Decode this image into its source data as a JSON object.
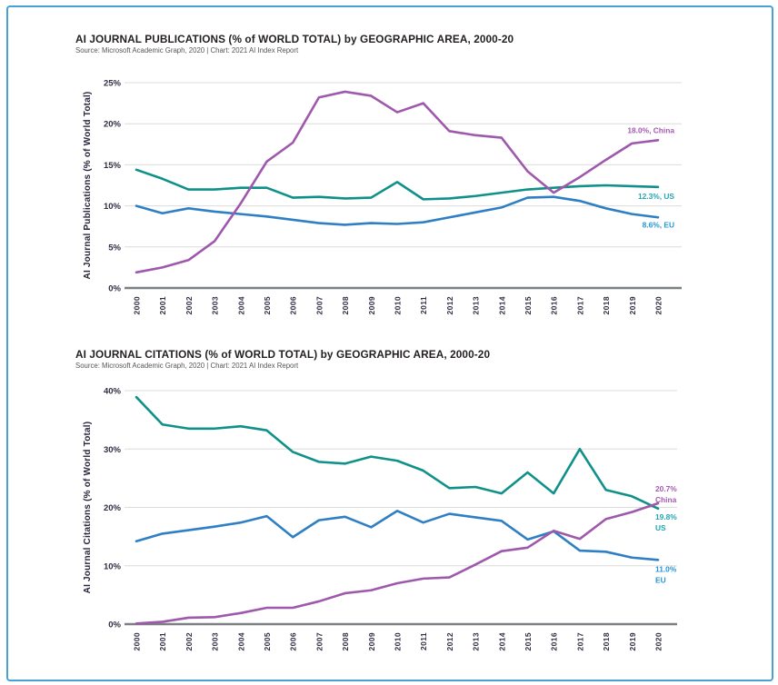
{
  "page": {
    "border_color": "#4ba0d2",
    "background": "#ffffff"
  },
  "chart_data": [
    {
      "type": "line",
      "title": "AI JOURNAL PUBLICATIONS (% of WORLD TOTAL) by GEOGRAPHIC AREA, 2000-20",
      "source": "Source: Microsoft Academic Graph, 2020 | Chart: 2021 AI Index Report",
      "ylabel": "AI Journal Publications (% of World Total)",
      "ylim": [
        0,
        25
      ],
      "yticks": [
        25,
        20,
        15,
        10,
        5,
        0
      ],
      "ytick_labels": [
        "25%",
        "20%",
        "15%",
        "10%",
        "5%",
        "0%"
      ],
      "grid": true,
      "legend_position": "right-end-labels",
      "categories": [
        "2000",
        "2001",
        "2002",
        "2003",
        "2004",
        "2005",
        "2006",
        "2007",
        "2008",
        "2009",
        "2010",
        "2011",
        "2012",
        "2013",
        "2014",
        "2015",
        "2016",
        "2017",
        "2018",
        "2019",
        "2020"
      ],
      "series": [
        {
          "name": "US",
          "color": "#0f918a",
          "label_color": "#23a5b4",
          "end_label": "12.3%, US",
          "values": [
            14.4,
            13.3,
            12.0,
            12.0,
            12.2,
            12.2,
            11.0,
            11.1,
            10.9,
            11.0,
            12.9,
            10.8,
            10.9,
            11.2,
            11.6,
            12.0,
            12.2,
            12.4,
            12.5,
            12.4,
            12.3
          ]
        },
        {
          "name": "EU",
          "color": "#2e7fc3",
          "label_color": "#2596d8",
          "end_label": "8.6%, EU",
          "values": [
            10.0,
            9.1,
            9.7,
            9.3,
            9.0,
            8.7,
            8.3,
            7.9,
            7.7,
            7.9,
            7.8,
            8.0,
            8.6,
            9.2,
            9.8,
            11.0,
            11.1,
            10.6,
            9.7,
            9.0,
            8.6
          ]
        },
        {
          "name": "China",
          "color": "#9e58ac",
          "label_color": "#a55ab1",
          "end_label": "18.0%, China",
          "values": [
            1.9,
            2.5,
            3.4,
            5.7,
            10.3,
            15.4,
            17.7,
            23.2,
            23.9,
            23.4,
            21.4,
            22.5,
            19.1,
            18.6,
            18.3,
            14.2,
            11.6,
            13.5,
            15.6,
            17.6,
            18.0
          ]
        }
      ]
    },
    {
      "type": "line",
      "title": "AI JOURNAL CITATIONS (% of WORLD TOTAL) by GEOGRAPHIC AREA, 2000-20",
      "source": "Source: Microsoft Academic Graph, 2020 | Chart: 2021 AI Index Report",
      "ylabel": "AI Journal Citations (% of World Total)",
      "ylim": [
        0,
        40
      ],
      "yticks": [
        40,
        30,
        20,
        10,
        0
      ],
      "ytick_labels": [
        "40%",
        "30%",
        "20%",
        "10%",
        "0%"
      ],
      "grid": true,
      "legend_position": "right-end-labels",
      "categories": [
        "2000",
        "2001",
        "2002",
        "2003",
        "2004",
        "2005",
        "2006",
        "2007",
        "2008",
        "2009",
        "2010",
        "2011",
        "2012",
        "2013",
        "2014",
        "2015",
        "2016",
        "2017",
        "2018",
        "2019",
        "2020"
      ],
      "series": [
        {
          "name": "US",
          "color": "#0f918a",
          "label_color": "#23a5b4",
          "end_label": [
            "19.8%",
            "US"
          ],
          "values": [
            38.9,
            34.2,
            33.5,
            33.5,
            33.9,
            33.2,
            29.5,
            27.8,
            27.5,
            28.7,
            28.0,
            26.3,
            23.3,
            23.5,
            22.4,
            26.0,
            22.4,
            30.0,
            23.0,
            21.9,
            19.8
          ]
        },
        {
          "name": "EU",
          "color": "#2e7fc3",
          "label_color": "#2596d8",
          "end_label": [
            "11.0%",
            "EU"
          ],
          "values": [
            14.2,
            15.5,
            16.1,
            16.7,
            17.4,
            18.5,
            14.9,
            17.8,
            18.4,
            16.6,
            19.4,
            17.4,
            18.9,
            18.3,
            17.7,
            14.5,
            15.9,
            12.6,
            12.4,
            11.4,
            11.0
          ]
        },
        {
          "name": "China",
          "color": "#9e58ac",
          "label_color": "#a55ab1",
          "end_label": [
            "20.7%",
            "China"
          ],
          "values": [
            0.1,
            0.4,
            1.1,
            1.2,
            1.9,
            2.8,
            2.8,
            3.9,
            5.3,
            5.8,
            7.0,
            7.8,
            8.0,
            10.2,
            12.5,
            13.1,
            16.0,
            14.6,
            18.0,
            19.2,
            20.7
          ]
        }
      ]
    }
  ]
}
